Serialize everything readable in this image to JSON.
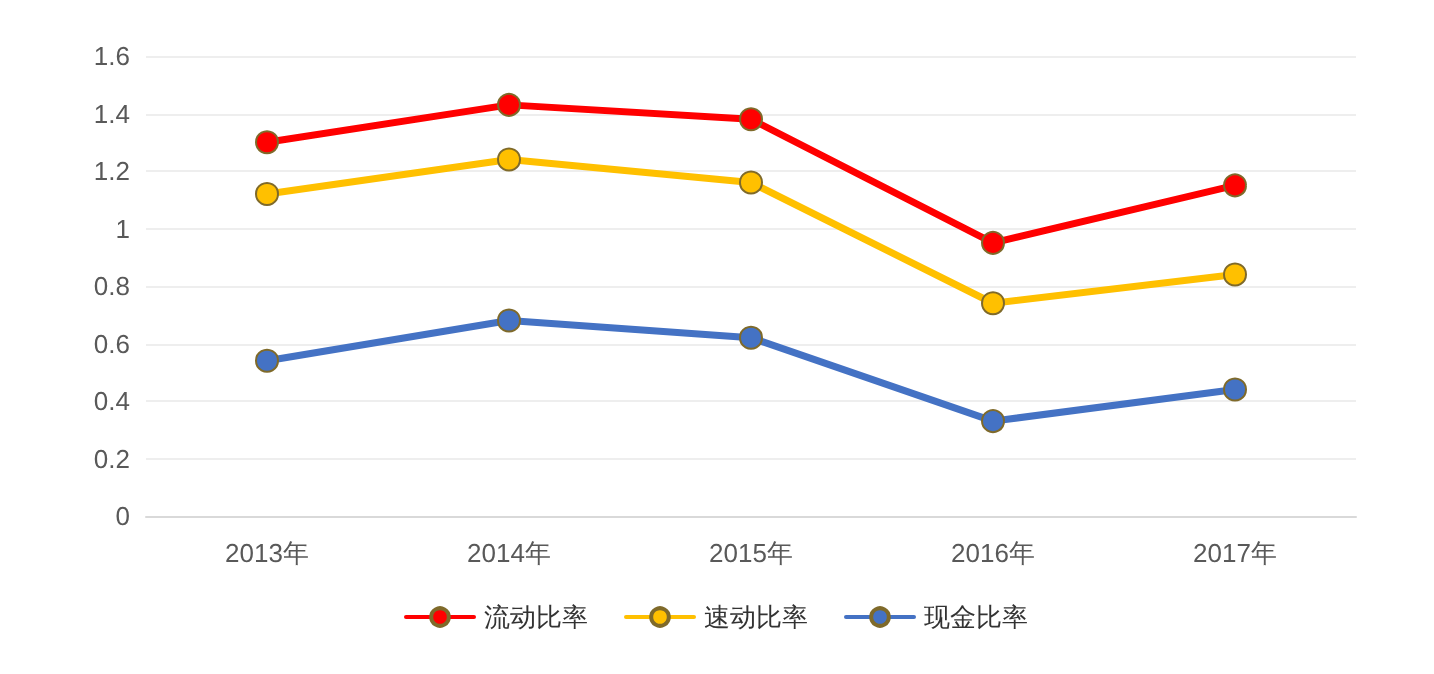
{
  "chart_data": {
    "type": "line",
    "categories": [
      "2013年",
      "2014年",
      "2015年",
      "2016年",
      "2017年"
    ],
    "series": [
      {
        "name": "流动比率",
        "color": "#ff0000",
        "values": [
          1.3,
          1.43,
          1.38,
          0.95,
          1.15
        ]
      },
      {
        "name": "速动比率",
        "color": "#ffc000",
        "values": [
          1.12,
          1.24,
          1.16,
          0.74,
          0.84
        ]
      },
      {
        "name": "现金比率",
        "color": "#4472c4",
        "values": [
          0.54,
          0.68,
          0.62,
          0.33,
          0.44
        ]
      }
    ],
    "ylim": [
      0,
      1.6
    ],
    "yticks": [
      0,
      0.2,
      0.4,
      0.6,
      0.8,
      1,
      1.2,
      1.4,
      1.6
    ],
    "grid": "y",
    "legend": "bottom",
    "marker": "circle",
    "line_style": "solid"
  }
}
